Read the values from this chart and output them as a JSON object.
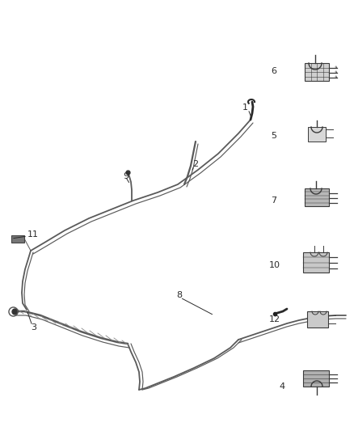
{
  "bg_color": "#ffffff",
  "fig_width": 4.38,
  "fig_height": 5.33,
  "dpi": 100,
  "line_color": "#5a5a5a",
  "label_color": "#2a2a2a",
  "lw_main": 1.3,
  "lw_thin": 0.85
}
